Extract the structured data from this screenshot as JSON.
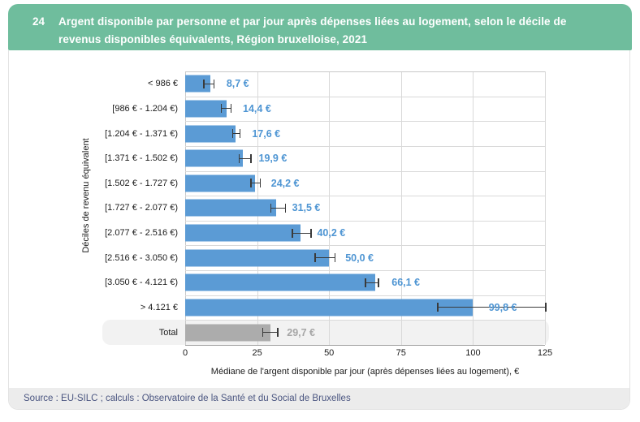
{
  "header": {
    "number": "24",
    "title": "Argent disponible par personne et par jour après dépenses liées au logement, selon le décile de revenus disponibles équivalents, Région bruxelloise, 2021"
  },
  "source": {
    "text": "Source : EU-SILC ; calculs : Observatoire de la Santé et du Social de Bruxelles"
  },
  "colors": {
    "header_bg": "#6FBD9D",
    "header_text": "#FFFFFF",
    "bar": "#5B9BD5",
    "bar_total": "#ACACAC",
    "value_label": "#4E95D3",
    "value_label_total": "#A6A6A6",
    "error_bar": "#3A3A3A",
    "grid_line": "#D9D9D9",
    "plot_border": "#C9C9C9",
    "axis_line": "#9E9E9E",
    "total_band_bg": "#F2F2F2",
    "source_band_bg": "#ECECEC",
    "source_text": "#4A5580",
    "text": "#1A1A1A"
  },
  "chart_data": {
    "type": "bar",
    "orientation": "horizontal",
    "title": "Argent disponible par personne et par jour après dépenses liées au logement, selon le décile de revenus disponibles équivalents, Région bruxelloise, 2021",
    "xlabel": "Médiane de l'argent disponible par jour (après dépenses liées au logement), €",
    "ylabel": "Déciles de revenu équivalent",
    "xlim": [
      0,
      125
    ],
    "xticks": [
      0,
      25,
      50,
      75,
      100,
      125
    ],
    "grid": true,
    "legend": "none",
    "categories": [
      "< 986 €",
      "[986 € - 1.204 €)",
      "[1.204 € - 1.371 €)",
      "[1.371 € - 1.502 €)",
      "[1.502 € - 1.727 €)",
      "[1.727 € - 2.077 €)",
      "[2.077 € - 2.516 €)",
      "[2.516 € - 3.050 €)",
      "[3.050 € - 4.121 €)",
      "> 4.121 €",
      "Total"
    ],
    "values": [
      8.7,
      14.4,
      17.6,
      19.9,
      24.2,
      31.5,
      40.2,
      50.0,
      66.1,
      99.8,
      29.7
    ],
    "value_labels": [
      "8,7 €",
      "14,4 €",
      "17,6 €",
      "19,9 €",
      "24,2 €",
      "31,5 €",
      "40,2 €",
      "50,0 €",
      "66,1 €",
      "99,8 €",
      "29,7 €"
    ],
    "error_low_estimated": [
      6.3,
      12.4,
      16.3,
      18.6,
      22.6,
      29.5,
      37.0,
      45.0,
      62.4,
      87.5,
      26.8
    ],
    "error_high_estimated": [
      10.2,
      16.2,
      19.3,
      23.1,
      26.3,
      35.0,
      44.0,
      52.3,
      67.3,
      125.5,
      32.4
    ],
    "total_row_index": 10
  }
}
